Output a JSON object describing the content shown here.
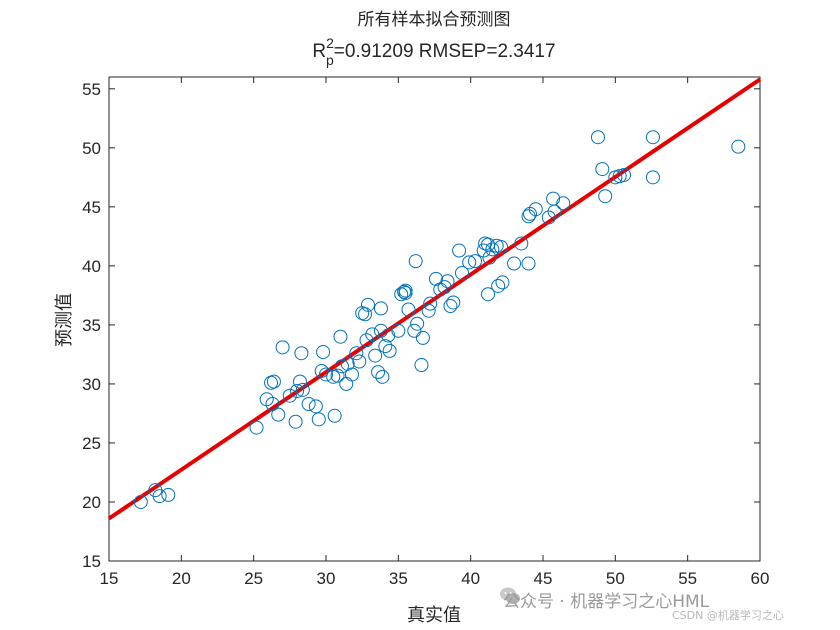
{
  "chart_data": {
    "type": "scatter",
    "title_line1": "所有样本拟合预测图",
    "title_line2": {
      "r_base": "R",
      "r_sup": "2",
      "r_sub": "p",
      "rest": "=0.91209  RMSEP=2.3417"
    },
    "xlabel": "真实值",
    "ylabel": "预测值",
    "xlim": [
      15,
      60
    ],
    "ylim": [
      15,
      56
    ],
    "xticks": [
      15,
      20,
      25,
      30,
      35,
      40,
      45,
      50,
      55,
      60
    ],
    "yticks": [
      15,
      20,
      25,
      30,
      35,
      40,
      45,
      50,
      55
    ],
    "marker_color": "#0072BD",
    "fit_line_color": "#e60000",
    "fit_line": {
      "x": [
        15,
        60
      ],
      "y": [
        18.6,
        55.8
      ]
    },
    "grid": false,
    "points": [
      [
        17.2,
        20.0
      ],
      [
        18.2,
        21.0
      ],
      [
        18.5,
        20.5
      ],
      [
        19.1,
        20.6
      ],
      [
        25.2,
        26.3
      ],
      [
        25.9,
        28.7
      ],
      [
        26.2,
        30.1
      ],
      [
        26.4,
        30.2
      ],
      [
        26.3,
        28.3
      ],
      [
        26.7,
        27.4
      ],
      [
        27.0,
        33.1
      ],
      [
        27.5,
        29.0
      ],
      [
        27.9,
        26.8
      ],
      [
        28.0,
        29.4
      ],
      [
        28.2,
        30.2
      ],
      [
        28.3,
        32.6
      ],
      [
        28.4,
        29.5
      ],
      [
        28.8,
        28.3
      ],
      [
        29.3,
        28.1
      ],
      [
        29.5,
        27.0
      ],
      [
        29.7,
        31.1
      ],
      [
        29.8,
        32.7
      ],
      [
        30.0,
        30.8
      ],
      [
        30.5,
        30.6
      ],
      [
        30.6,
        27.3
      ],
      [
        30.8,
        30.7
      ],
      [
        31.0,
        34.0
      ],
      [
        31.1,
        31.5
      ],
      [
        31.4,
        30.0
      ],
      [
        31.5,
        31.7
      ],
      [
        31.8,
        30.8
      ],
      [
        32.1,
        32.6
      ],
      [
        32.3,
        31.9
      ],
      [
        32.5,
        36.0
      ],
      [
        32.7,
        35.9
      ],
      [
        32.8,
        33.7
      ],
      [
        32.9,
        36.7
      ],
      [
        33.2,
        34.2
      ],
      [
        33.4,
        32.4
      ],
      [
        33.6,
        31.0
      ],
      [
        33.8,
        34.5
      ],
      [
        33.8,
        36.4
      ],
      [
        33.9,
        30.6
      ],
      [
        34.1,
        33.2
      ],
      [
        34.3,
        34.1
      ],
      [
        34.4,
        32.8
      ],
      [
        35.0,
        34.5
      ],
      [
        35.2,
        37.6
      ],
      [
        35.4,
        37.8
      ],
      [
        35.5,
        37.9
      ],
      [
        35.5,
        37.7
      ],
      [
        35.7,
        36.3
      ],
      [
        36.1,
        34.5
      ],
      [
        36.2,
        40.4
      ],
      [
        36.3,
        35.1
      ],
      [
        36.7,
        33.9
      ],
      [
        36.6,
        31.6
      ],
      [
        37.1,
        36.2
      ],
      [
        37.2,
        36.8
      ],
      [
        37.6,
        38.9
      ],
      [
        37.9,
        38.0
      ],
      [
        38.2,
        38.2
      ],
      [
        38.4,
        38.7
      ],
      [
        38.6,
        36.6
      ],
      [
        38.8,
        36.9
      ],
      [
        39.2,
        41.3
      ],
      [
        39.4,
        39.4
      ],
      [
        39.9,
        40.3
      ],
      [
        40.3,
        40.4
      ],
      [
        40.9,
        41.3
      ],
      [
        41.0,
        41.9
      ],
      [
        41.2,
        41.8
      ],
      [
        41.3,
        40.7
      ],
      [
        41.2,
        37.6
      ],
      [
        41.5,
        41.4
      ],
      [
        41.8,
        41.7
      ],
      [
        41.9,
        38.3
      ],
      [
        42.2,
        38.6
      ],
      [
        42.1,
        41.6
      ],
      [
        43.0,
        40.2
      ],
      [
        43.5,
        41.9
      ],
      [
        44.0,
        40.2
      ],
      [
        44.0,
        44.2
      ],
      [
        44.1,
        44.4
      ],
      [
        44.5,
        44.8
      ],
      [
        45.4,
        44.1
      ],
      [
        45.7,
        45.7
      ],
      [
        45.8,
        44.6
      ],
      [
        46.4,
        45.3
      ],
      [
        48.8,
        50.9
      ],
      [
        49.1,
        48.2
      ],
      [
        49.3,
        45.9
      ],
      [
        50.0,
        47.5
      ],
      [
        50.3,
        47.6
      ],
      [
        50.6,
        47.7
      ],
      [
        52.6,
        50.9
      ],
      [
        52.6,
        47.5
      ],
      [
        58.5,
        50.1
      ]
    ]
  },
  "watermark": {
    "main": "公众号 · 机器学习之心HML",
    "sub": "CSDN @机器学习之心"
  }
}
